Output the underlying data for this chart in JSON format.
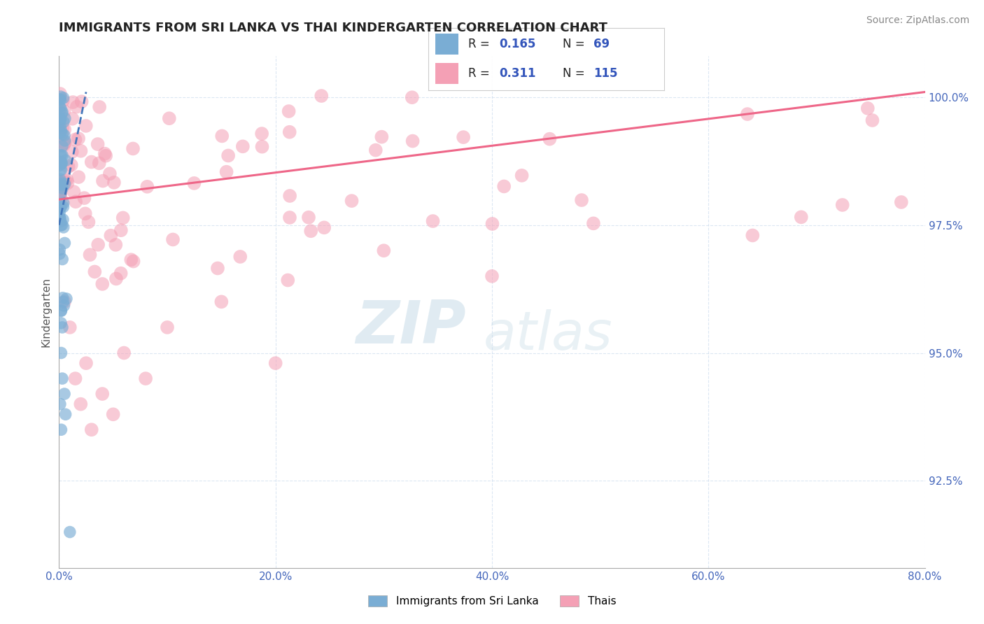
{
  "title": "IMMIGRANTS FROM SRI LANKA VS THAI KINDERGARTEN CORRELATION CHART",
  "source_text": "Source: ZipAtlas.com",
  "ylabel": "Kindergarten",
  "x_min": 0.0,
  "x_max": 0.8,
  "y_min": 0.908,
  "y_max": 1.008,
  "ytick_labels": [
    "92.5%",
    "95.0%",
    "97.5%",
    "100.0%"
  ],
  "ytick_values": [
    0.925,
    0.95,
    0.975,
    1.0
  ],
  "xtick_labels": [
    "0.0%",
    "20.0%",
    "40.0%",
    "60.0%",
    "80.0%"
  ],
  "xtick_values": [
    0.0,
    0.2,
    0.4,
    0.6,
    0.8
  ],
  "sri_lanka_R": 0.165,
  "sri_lanka_N": 69,
  "thai_R": 0.311,
  "thai_N": 115,
  "sri_lanka_color": "#7AADD4",
  "thai_color": "#F4A0B5",
  "sri_lanka_trend_color": "#4477BB",
  "thai_trend_color": "#EE6688",
  "legend_label_sri": "Immigrants from Sri Lanka",
  "legend_label_thai": "Thais",
  "watermark_zip": "ZIP",
  "watermark_atlas": "atlas",
  "r_n_color": "#3355BB",
  "title_color": "#222222",
  "axis_tick_color": "#4466BB",
  "source_color": "#888888"
}
